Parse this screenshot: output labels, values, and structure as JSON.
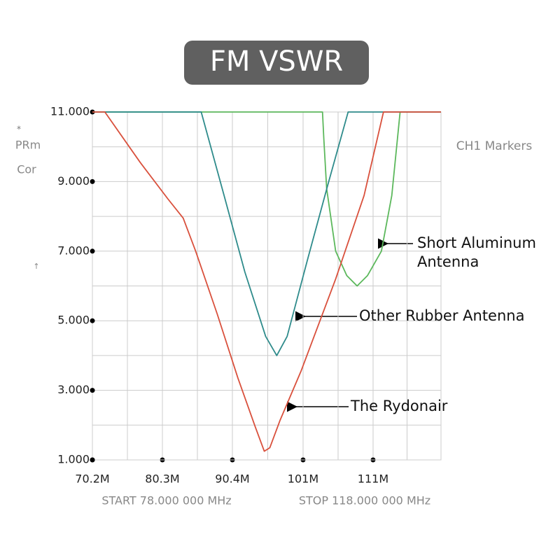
{
  "chart_data": {
    "type": "line",
    "title": "FM VSWR",
    "side_labels": [
      "*",
      "PRm",
      "Cor",
      "↑"
    ],
    "markers_label": "CH1 Markers",
    "start_label": "START 78.000 000 MHz",
    "stop_label": "STOP 118.000 000 MHz",
    "xlim": [
      70.2,
      120.5
    ],
    "ylim": [
      1,
      11
    ],
    "xticks": [
      {
        "value": 70.2,
        "label": "70.2M"
      },
      {
        "value": 80.3,
        "label": "80.3M"
      },
      {
        "value": 90.4,
        "label": "90.4M"
      },
      {
        "value": 100.6,
        "label": "101M"
      },
      {
        "value": 110.7,
        "label": "111M"
      }
    ],
    "yticks": [
      {
        "value": 11,
        "label": "11.000"
      },
      {
        "value": 9,
        "label": "9.000"
      },
      {
        "value": 7,
        "label": "7.000"
      },
      {
        "value": 5,
        "label": "5.000"
      },
      {
        "value": 3,
        "label": "3.000"
      },
      {
        "value": 1,
        "label": "1.000"
      }
    ],
    "grid": true,
    "series": [
      {
        "name": "Short Aluminum Antenna",
        "color": "#5cb85c",
        "x": [
          70.2,
          103.4,
          103.6,
          104.0,
          105.3,
          106.9,
          108.4,
          109.9,
          111.9,
          113.4,
          114.6,
          120.5
        ],
        "values": [
          11,
          11,
          10.2,
          8.8,
          7.0,
          6.3,
          6.0,
          6.3,
          7.0,
          8.6,
          11,
          11
        ]
      },
      {
        "name": "Other Rubber Antenna",
        "color": "#2e8b8b",
        "x": [
          70.2,
          85.9,
          89.2,
          92.2,
          95.2,
          96.8,
          98.3,
          101.3,
          104.3,
          107.1,
          120.5
        ],
        "values": [
          11,
          11,
          8.6,
          6.4,
          4.55,
          4.0,
          4.55,
          6.8,
          9.0,
          11,
          11
        ]
      },
      {
        "name": "The Rydonair",
        "color": "#d9503c",
        "x": [
          70.2,
          72.0,
          77.1,
          81.1,
          83.3,
          85.1,
          88.2,
          91.2,
          93.7,
          95.0,
          95.8,
          97.3,
          100.3,
          105.3,
          109.4,
          112.2,
          120.5
        ],
        "values": [
          11,
          11,
          9.55,
          8.5,
          7.95,
          7.0,
          5.2,
          3.35,
          1.95,
          1.25,
          1.35,
          2.15,
          3.55,
          6.2,
          8.6,
          11,
          11
        ]
      }
    ]
  }
}
